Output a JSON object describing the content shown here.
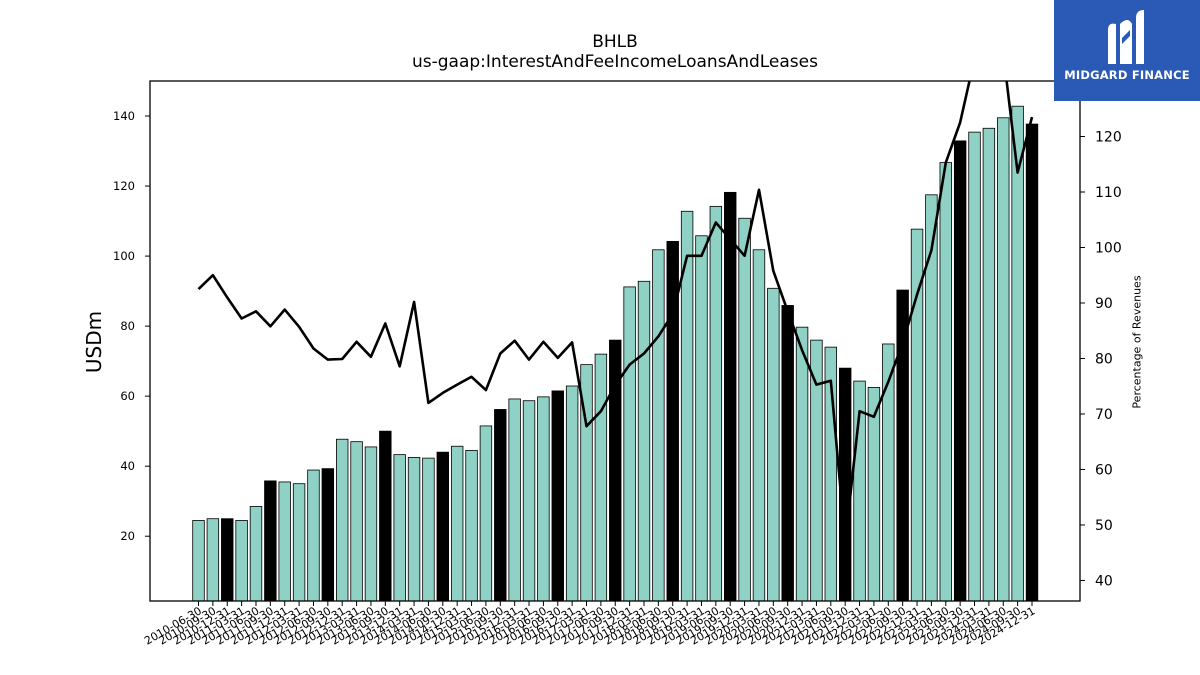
{
  "chart_data": {
    "type": "bar",
    "title": "BHLB",
    "subtitle": "us-gaap:InterestAndFeeIncomeLoansAndLeases",
    "ylabel": "USDm",
    "y2label": "Percentage of Revenues",
    "ylim": [
      1.5,
      150
    ],
    "y2lim": [
      36.3,
      130
    ],
    "yticks": [
      20,
      40,
      60,
      80,
      100,
      120,
      140
    ],
    "y2ticks": [
      40,
      50,
      60,
      70,
      80,
      90,
      100,
      110,
      120
    ],
    "grid": false,
    "colors": {
      "bar": "#8fd1c4",
      "annual_bar": "#000000",
      "line": "#000000",
      "bar_edge": "#000000"
    },
    "categories": [
      "2010-06-30",
      "2010-09-30",
      "2010-12-31",
      "2011-03-31",
      "2011-06-30",
      "2011-09-30",
      "2011-12-31",
      "2012-03-31",
      "2012-06-30",
      "2012-09-30",
      "2012-12-31",
      "2013-03-31",
      "2013-06-30",
      "2013-09-30",
      "2013-12-31",
      "2014-03-31",
      "2014-06-30",
      "2014-09-30",
      "2014-12-31",
      "2015-03-31",
      "2015-06-30",
      "2015-09-30",
      "2015-12-31",
      "2016-03-31",
      "2016-06-30",
      "2016-09-30",
      "2016-12-31",
      "2017-03-31",
      "2017-06-30",
      "2017-09-30",
      "2017-12-31",
      "2018-03-31",
      "2018-06-30",
      "2018-09-30",
      "2018-12-31",
      "2019-03-31",
      "2019-06-30",
      "2019-09-30",
      "2019-12-31",
      "2020-03-31",
      "2020-06-30",
      "2020-09-30",
      "2020-12-31",
      "2021-03-31",
      "2021-06-30",
      "2021-09-30",
      "2021-12-31",
      "2022-03-31",
      "2022-06-30",
      "2022-09-30",
      "2022-12-31",
      "2023-03-31",
      "2023-06-30",
      "2023-09-30",
      "2023-12-31",
      "2024-03-31",
      "2024-06-30",
      "2024-09-30",
      "2024-12-31"
    ],
    "x_tick_labels": [
      "2010-06-30",
      "2010-09-30",
      "2010-12-31",
      "2011-03-31",
      "2011-06-30",
      "2011-09-30",
      "2011-12-31",
      "2012-03-31",
      "2012-06-30",
      "2012-09-30",
      "2012-12-31",
      "2013-03-31",
      "2013-06-30",
      "2013-09-30",
      "2013-12-31",
      "2014-03-31",
      "2014-06-30",
      "2014-09-30",
      "2014-12-31",
      "2015-03-31",
      "2015-06-30",
      "2015-09-30",
      "2015-12-31",
      "2016-03-31",
      "2016-06-30",
      "2016-09-30",
      "2016-12-31",
      "2017-03-31",
      "2017-06-30",
      "2017-09-30",
      "2017-12-31",
      "2018-03-31",
      "2018-06-30",
      "2018-09-30",
      "2018-12-31",
      "2019-03-31",
      "2019-06-30",
      "2019-09-30",
      "2019-12-31",
      "2020-03-31",
      "2020-06-30",
      "2020-09-30",
      "2020-12-31",
      "2021-03-31",
      "2021-06-30",
      "2021-09-30",
      "2021-12-31",
      "2022-03-31",
      "2022-06-30",
      "2022-09-30",
      "2022-12-31",
      "2023-03-31",
      "2023-06-30",
      "2023-09-30",
      "2023-12-31",
      "2024-03-31",
      "2024-06-30",
      "2024-09-30",
      "2024-12-31"
    ],
    "annual": [
      false,
      false,
      true,
      false,
      false,
      true,
      false,
      false,
      false,
      true,
      false,
      false,
      false,
      true,
      false,
      false,
      false,
      true,
      false,
      false,
      false,
      true,
      false,
      false,
      false,
      true,
      false,
      false,
      false,
      true,
      false,
      false,
      false,
      true,
      false,
      false,
      false,
      true,
      false,
      false,
      false,
      true,
      false,
      false,
      false,
      true,
      false,
      false,
      false,
      true,
      false,
      false,
      false,
      true,
      false,
      false,
      false,
      false,
      true
    ],
    "series": [
      {
        "values": [
          24.5,
          25,
          25,
          24.5,
          28.5,
          35.8,
          35.5,
          35,
          38.9,
          39.3,
          47.7,
          47,
          45.5,
          50,
          43.3,
          42.5,
          42.3,
          44,
          45.7,
          44.5,
          51.5,
          56.2,
          59.2,
          58.7,
          59.8,
          61.5,
          62.9,
          69,
          72,
          76,
          91.2,
          92.8,
          101.8,
          104.2,
          112.8,
          105.8,
          114.2,
          118.2,
          110.8,
          101.8,
          90.8,
          85.9,
          79.7,
          76,
          74,
          68,
          64.3,
          62.5,
          74.9,
          90.3,
          107.7,
          117.5,
          126.7,
          132.9,
          135.4,
          136.5,
          139.5,
          142.8,
          137.7
        ]
      },
      {
        "values": [
          92.5,
          95,
          91,
          87.2,
          88.5,
          85.8,
          88.8,
          85.7,
          81.8,
          79.8,
          79.9,
          83,
          80.3,
          86.3,
          78.6,
          90.2,
          72,
          73.8,
          75.3,
          76.7,
          74.3,
          80.9,
          83.2,
          79.8,
          83,
          80.1,
          82.9,
          67.8,
          70.5,
          75.2,
          78.9,
          80.9,
          84,
          88,
          98.5,
          98.5,
          104.5,
          101.5,
          98.5,
          110.4,
          95.8,
          88.5,
          81.5,
          75.3,
          76,
          47,
          70.5,
          69.5,
          75.8,
          82.8,
          91.5,
          99.5,
          115.3,
          122.5,
          134,
          135,
          135,
          113.5,
          123.5
        ]
      }
    ]
  },
  "logo": {
    "text": "MIDGARD FINANCE"
  }
}
